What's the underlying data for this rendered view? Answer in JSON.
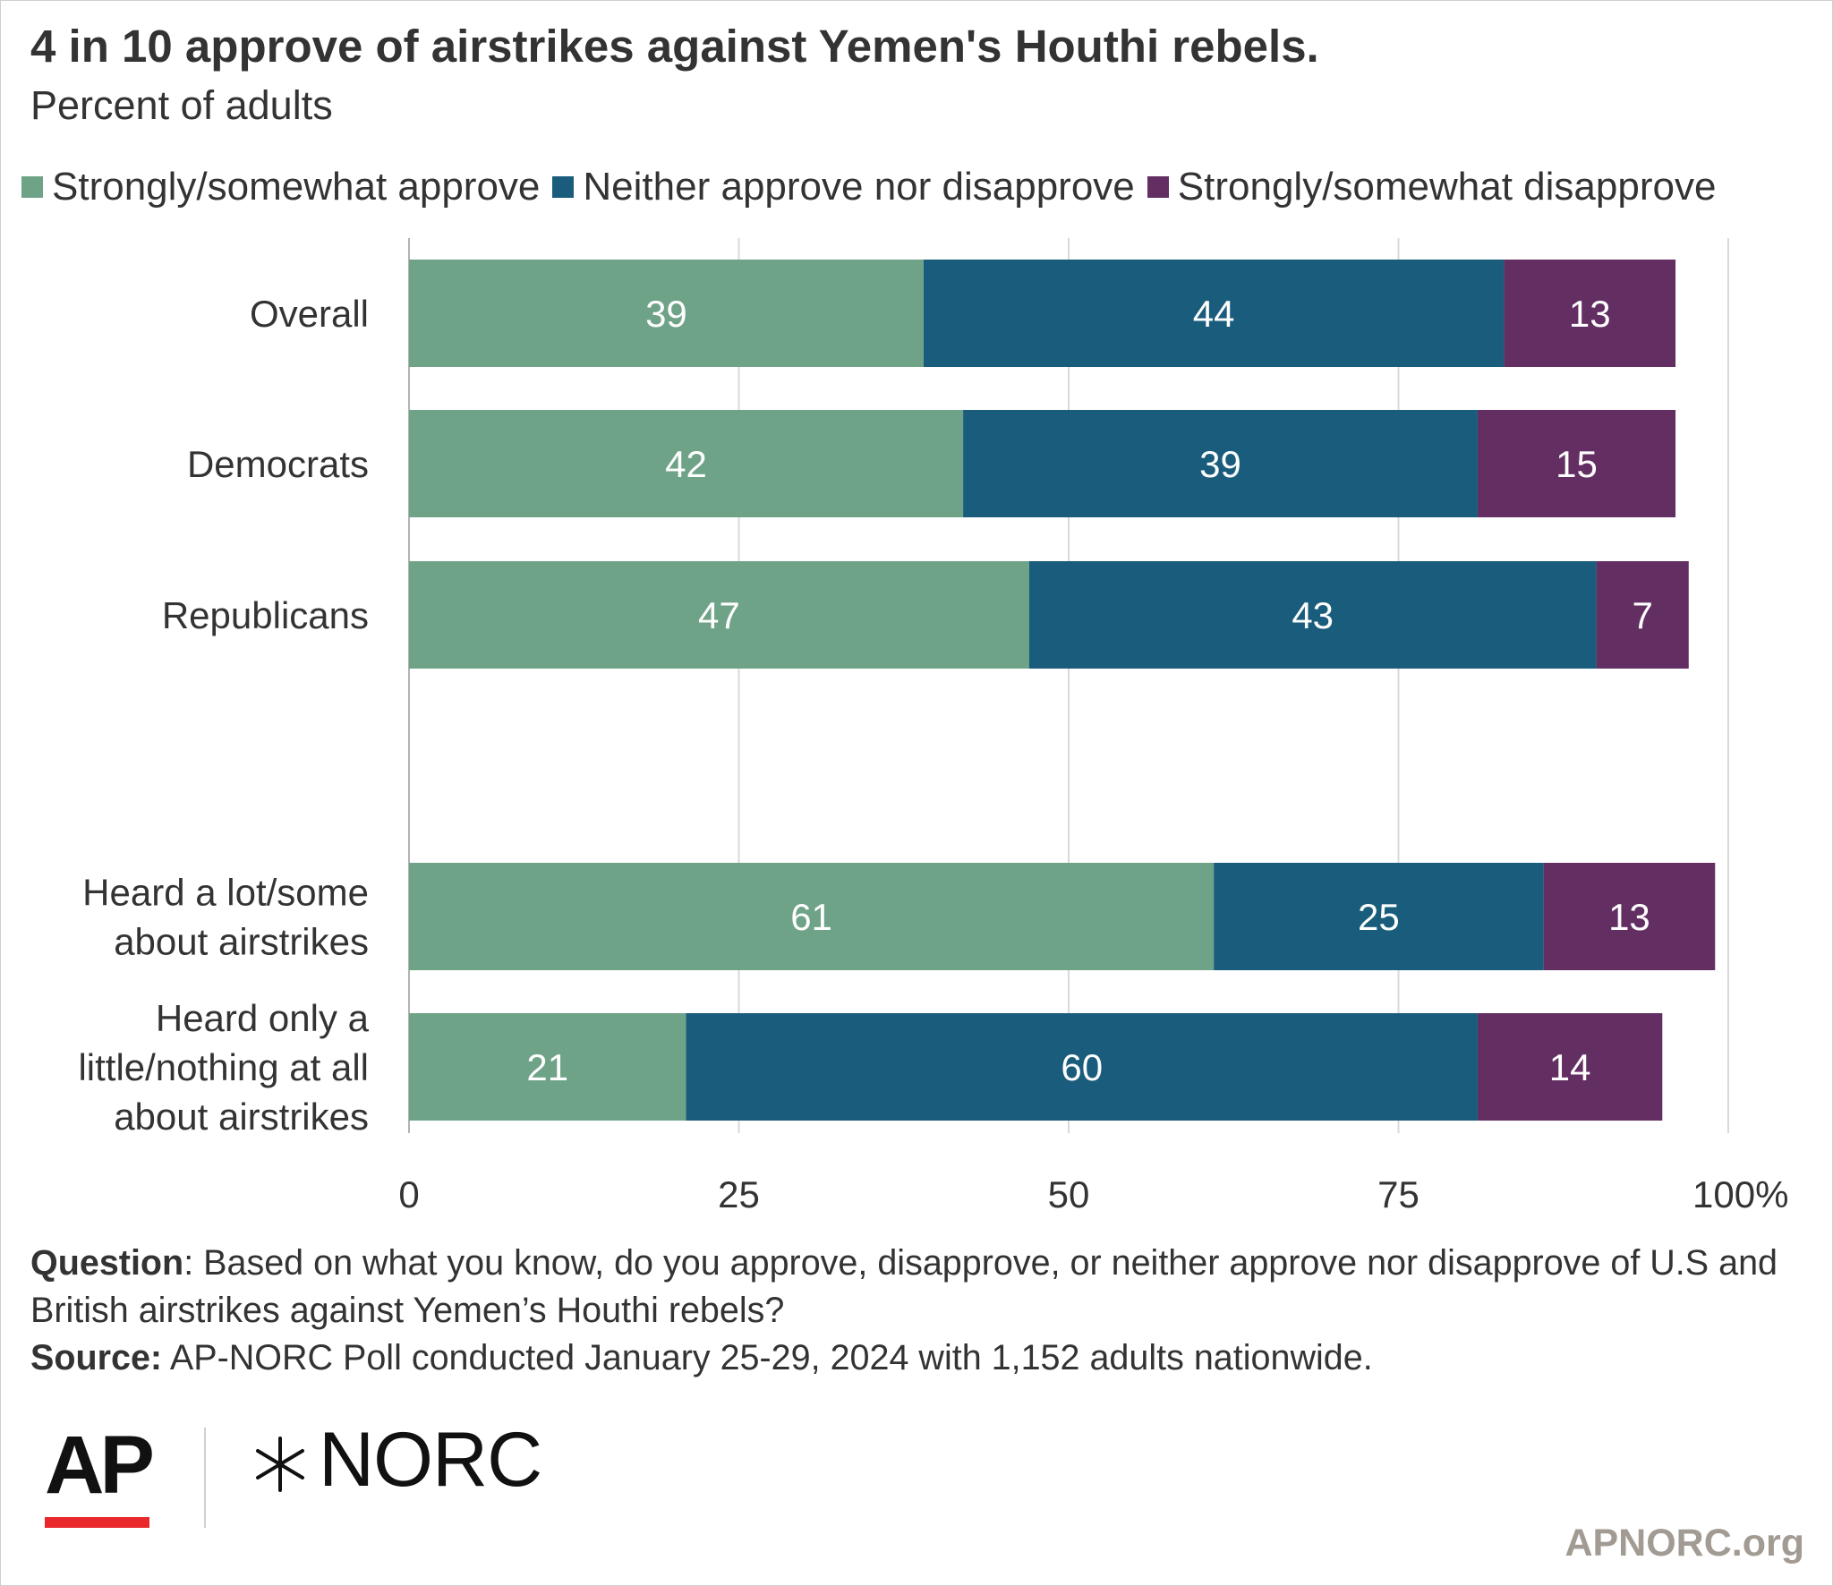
{
  "chart_data": {
    "type": "bar",
    "orientation": "horizontal",
    "stacked": true,
    "title": "4 in 10 approve of airstrikes against Yemen's Houthi rebels.",
    "subtitle": "Percent of adults",
    "categories": [
      [
        "Overall"
      ],
      [
        "Democrats"
      ],
      [
        "Republicans"
      ],
      [
        "Heard a lot/some",
        "about airstrikes"
      ],
      [
        "Heard only a",
        "little/nothing at all",
        "about airstrikes"
      ]
    ],
    "series": [
      {
        "name": "Strongly/somewhat approve",
        "color": "#6fa388",
        "values": [
          39,
          42,
          47,
          61,
          21
        ]
      },
      {
        "name": "Neither approve nor disapprove",
        "color": "#195c7c",
        "values": [
          44,
          39,
          43,
          25,
          60
        ]
      },
      {
        "name": "Strongly/somewhat disapprove",
        "color": "#632e62",
        "values": [
          13,
          15,
          7,
          13,
          14
        ]
      }
    ],
    "xlim": [
      0,
      100
    ],
    "xticks": [
      "0",
      "25",
      "50",
      "75",
      "100%"
    ],
    "xtick_values": [
      0,
      25,
      50,
      75,
      100
    ],
    "grid": true,
    "legend": "top"
  },
  "footer": {
    "question_label": "Question",
    "question_text": ": Based on what you know, do you approve, disapprove, or neither approve nor disapprove of U.S and British airstrikes against Yemen’s Houthi rebels?",
    "source_label": "Source:",
    "source_text": " AP-NORC Poll conducted January 25-29, 2024 with 1,152 adults nationwide.",
    "logo_ap": "AP",
    "logo_norc": "NORC",
    "website": "APNORC.org"
  }
}
